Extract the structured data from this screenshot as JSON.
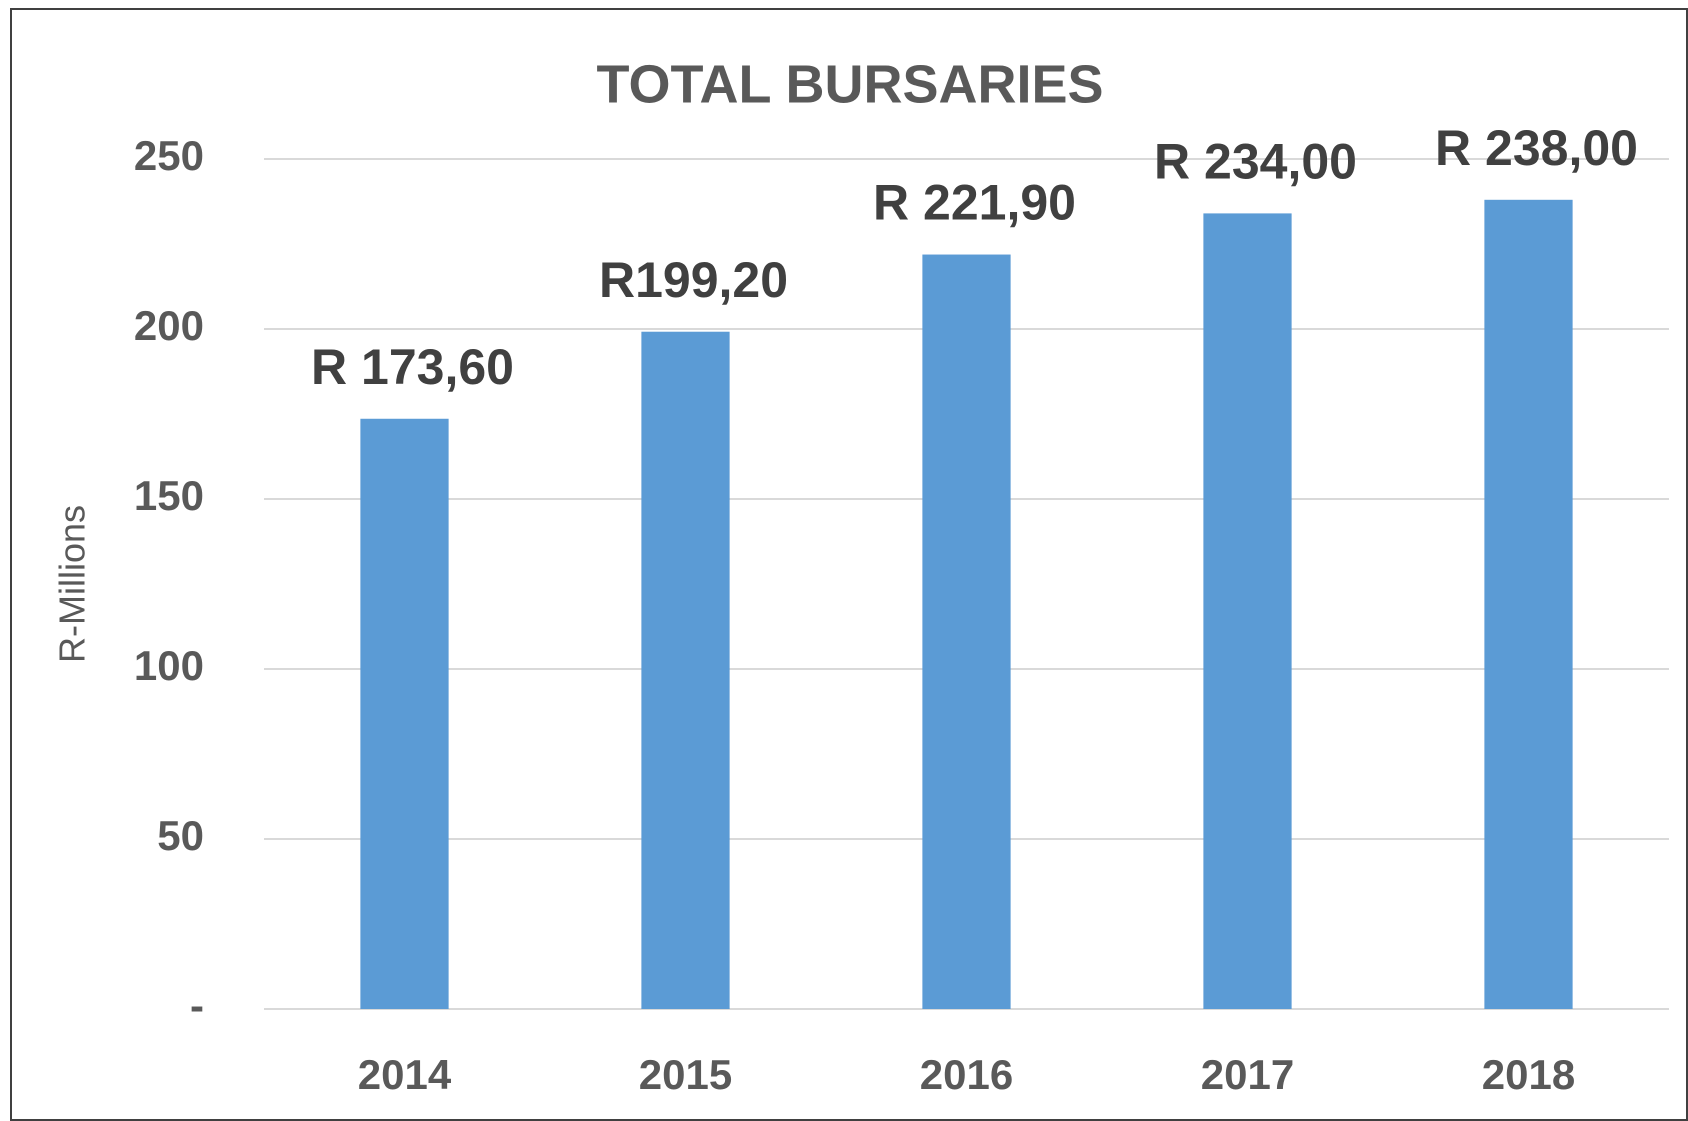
{
  "chart_data": {
    "type": "bar",
    "title": "TOTAL BURSARIES",
    "y_label": "R-Millions",
    "categories": [
      "2014",
      "2015",
      "2016",
      "2017",
      "2018"
    ],
    "values": [
      173.6,
      199.2,
      221.9,
      234,
      238
    ],
    "value_labels": [
      "R 173,60",
      "R199,20",
      "R 221,90",
      "R 234,00",
      "R 238,00"
    ],
    "color": "#5b9bd5",
    "ylim": [
      0,
      250
    ],
    "yticks": [
      {
        "value": 0,
        "label": "-"
      },
      50,
      100,
      150,
      200,
      250
    ],
    "grid": true
  }
}
